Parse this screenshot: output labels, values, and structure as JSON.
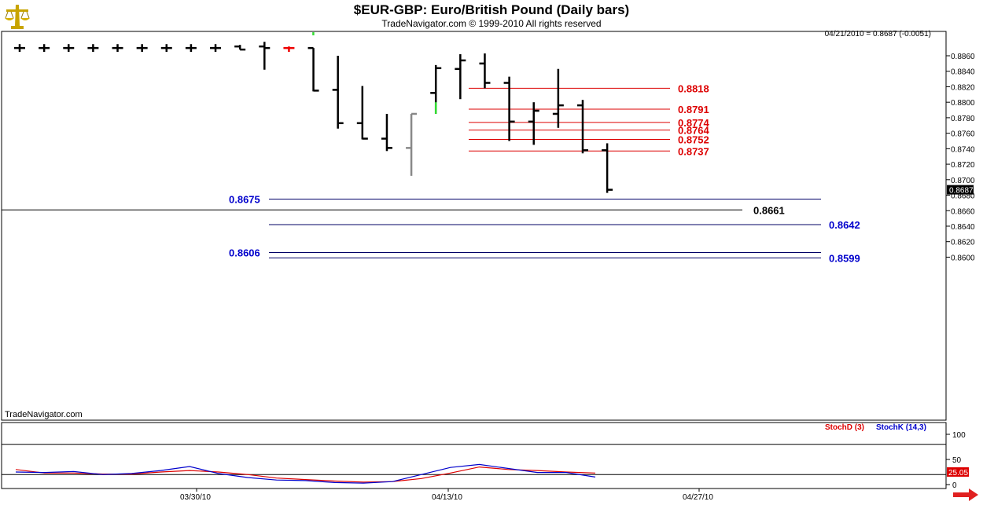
{
  "header": {
    "title": "$EUR-GBP:  Euro/British Pound  (Daily bars)",
    "subtitle": "TradeNavigator.com © 1999-2010 All rights reserved",
    "quote": "04/21/2010 = 0.8687 (-0.0051)",
    "brand": "TradeNavigator.com",
    "logo_icon": "scales-logo-icon",
    "nav_icon": "red-arrow-right-icon"
  },
  "colors": {
    "up_bar": "#33dd33",
    "down_bar": "#ee0000",
    "neutral_bar": "#888888",
    "bar": "#000000",
    "red_level": "#dd0000",
    "blue_level": "#0000cc",
    "stochD": "#dd0000",
    "stochK": "#0000cc"
  },
  "chart_data": [
    {
      "type": "ohlc",
      "ylim": [
        0.8585,
        0.8885
      ],
      "yticks": [
        "0.8860",
        "0.8840",
        "0.8820",
        "0.8800",
        "0.8780",
        "0.8760",
        "0.8740",
        "0.8720",
        "0.8700",
        "0.8680",
        "0.8660",
        "0.8640",
        "0.8620",
        "0.8600"
      ],
      "current_price": "0.8687",
      "xticks": [
        "03/30/10",
        "04/13/10",
        "04/27/10"
      ],
      "bars": [
        {
          "date": "03/18/10",
          "o": 0.887,
          "h": 0.8875,
          "l": 0.8865,
          "c": 0.887,
          "color": "black"
        },
        {
          "date": "03/19/10",
          "o": 0.887,
          "h": 0.8875,
          "l": 0.8865,
          "c": 0.887,
          "color": "black"
        },
        {
          "date": "03/22/10",
          "o": 0.887,
          "h": 0.8875,
          "l": 0.8865,
          "c": 0.887,
          "color": "black"
        },
        {
          "date": "03/23/10",
          "o": 0.887,
          "h": 0.8875,
          "l": 0.8865,
          "c": 0.887,
          "color": "black"
        },
        {
          "date": "03/24/10",
          "o": 0.887,
          "h": 0.8875,
          "l": 0.8865,
          "c": 0.887,
          "color": "black"
        },
        {
          "date": "03/25/10",
          "o": 0.887,
          "h": 0.8875,
          "l": 0.8865,
          "c": 0.887,
          "color": "black"
        },
        {
          "date": "03/26/10",
          "o": 0.887,
          "h": 0.8875,
          "l": 0.8865,
          "c": 0.887,
          "color": "black"
        },
        {
          "date": "03/29/10",
          "o": 0.887,
          "h": 0.8875,
          "l": 0.8865,
          "c": 0.887,
          "color": "black"
        },
        {
          "date": "03/30/10",
          "o": 0.887,
          "h": 0.8875,
          "l": 0.8865,
          "c": 0.887,
          "color": "black"
        },
        {
          "date": "03/31/10",
          "o": 0.8872,
          "h": 0.8874,
          "l": 0.8868,
          "c": 0.8868,
          "color": "black"
        },
        {
          "date": "04/01/10",
          "o": 0.8872,
          "h": 0.8878,
          "l": 0.8842,
          "c": 0.887,
          "color": "black"
        },
        {
          "date": "04/02/10",
          "o": 0.887,
          "h": 0.8872,
          "l": 0.8865,
          "c": 0.887,
          "color": "red"
        },
        {
          "date": "04/05/10",
          "o": 0.887,
          "h": 0.887,
          "l": 0.8814,
          "c": 0.8815,
          "color": "black"
        },
        {
          "date": "04/06/10",
          "o": 0.8816,
          "h": 0.886,
          "l": 0.8766,
          "c": 0.8773,
          "color": "black"
        },
        {
          "date": "04/07/10",
          "o": 0.8773,
          "h": 0.8821,
          "l": 0.8752,
          "c": 0.8753,
          "color": "black"
        },
        {
          "date": "04/08/10",
          "o": 0.8753,
          "h": 0.8785,
          "l": 0.8737,
          "c": 0.8741,
          "color": "black"
        },
        {
          "date": "04/09/10",
          "o": 0.8741,
          "h": 0.8785,
          "l": 0.8705,
          "c": 0.8785,
          "color": "gray"
        },
        {
          "date": "04/12/10",
          "o": 0.8812,
          "h": 0.8848,
          "l": 0.8785,
          "c": 0.8844,
          "color": "black"
        },
        {
          "date": "04/13/10",
          "o": 0.8843,
          "h": 0.8862,
          "l": 0.8804,
          "c": 0.8854,
          "color": "black"
        },
        {
          "date": "04/14/10",
          "o": 0.885,
          "h": 0.8863,
          "l": 0.8818,
          "c": 0.8825,
          "color": "black"
        },
        {
          "date": "04/15/10",
          "o": 0.8825,
          "h": 0.8833,
          "l": 0.875,
          "c": 0.8775,
          "color": "black"
        },
        {
          "date": "04/16/10",
          "o": 0.8775,
          "h": 0.88,
          "l": 0.8745,
          "c": 0.8789,
          "color": "black"
        },
        {
          "date": "04/19/10",
          "o": 0.8785,
          "h": 0.8843,
          "l": 0.8767,
          "c": 0.8796,
          "color": "black"
        },
        {
          "date": "04/20/10",
          "o": 0.8796,
          "h": 0.8803,
          "l": 0.8734,
          "c": 0.8738,
          "color": "black"
        },
        {
          "date": "04/21/10",
          "o": 0.8738,
          "h": 0.8747,
          "l": 0.8683,
          "c": 0.8687,
          "color": "black"
        }
      ],
      "levels_red": [
        {
          "value": 0.8818,
          "label": "0.8818"
        },
        {
          "value": 0.8791,
          "label": "0.8791"
        },
        {
          "value": 0.8774,
          "label": "0.8774"
        },
        {
          "value": 0.8764,
          "label": "0.8764"
        },
        {
          "value": 0.8752,
          "label": "0.8752"
        },
        {
          "value": 0.8737,
          "label": "0.8737"
        }
      ],
      "levels_blue": [
        {
          "value": 0.8675,
          "label": "0.8675",
          "label_side": "left"
        },
        {
          "value": 0.8642,
          "label": "0.8642",
          "label_side": "right"
        },
        {
          "value": 0.8606,
          "label": "0.8606",
          "label_side": "left"
        },
        {
          "value": 0.8599,
          "label": "0.8599",
          "label_side": "right"
        }
      ],
      "levels_black": [
        {
          "value": 0.8661,
          "label": "0.8661"
        }
      ]
    },
    {
      "type": "line",
      "ylim": [
        0,
        100
      ],
      "yticks": [
        "100",
        "50",
        "0"
      ],
      "reference_lines": [
        80,
        20
      ],
      "current_value": "25.05",
      "series": [
        {
          "name": "StochD (3)",
          "values": [
            30,
            23,
            23,
            21,
            21,
            25,
            28,
            25,
            20,
            13,
            10,
            7,
            5,
            6,
            12,
            23,
            35,
            30,
            28,
            25,
            23
          ]
        },
        {
          "name": "StochK (14,3)",
          "values": [
            25,
            24,
            26,
            20,
            22,
            28,
            36,
            22,
            14,
            9,
            8,
            4,
            3,
            6,
            20,
            34,
            40,
            32,
            24,
            24,
            15
          ]
        }
      ]
    }
  ]
}
